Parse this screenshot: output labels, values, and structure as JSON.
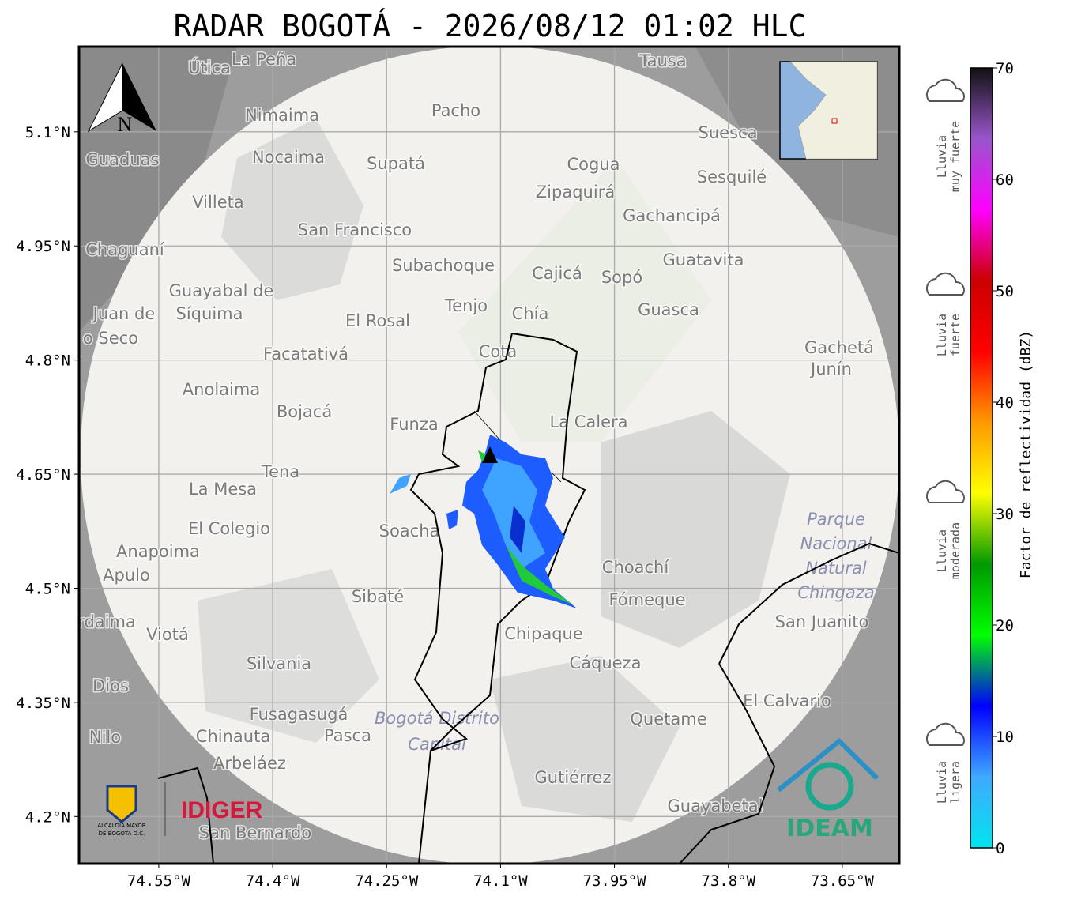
{
  "title": "RADAR BOGOTÁ - 2026/08/12 01:02 HLC",
  "map": {
    "lon_extent": [
      -74.655,
      -73.575
    ],
    "lat_extent": [
      4.138,
      5.212
    ],
    "lon_ticks": [
      {
        "value": -74.55,
        "label": "74.55°W"
      },
      {
        "value": -74.4,
        "label": "74.4°W"
      },
      {
        "value": -74.25,
        "label": "74.25°W"
      },
      {
        "value": -74.1,
        "label": "74.1°W"
      },
      {
        "value": -73.95,
        "label": "73.95°W"
      },
      {
        "value": -73.8,
        "label": "73.8°W"
      },
      {
        "value": -73.65,
        "label": "73.65°W"
      }
    ],
    "lat_ticks": [
      {
        "value": 5.1,
        "label": "5.1°N"
      },
      {
        "value": 4.95,
        "label": "4.95°N"
      },
      {
        "value": 4.8,
        "label": "4.8°N"
      },
      {
        "value": 4.65,
        "label": "4.65°N"
      },
      {
        "value": 4.5,
        "label": "4.5°N"
      },
      {
        "value": 4.35,
        "label": "4.35°N"
      },
      {
        "value": 4.2,
        "label": "4.2°N"
      }
    ],
    "places": [
      "La Peña",
      "Útica",
      "Tausa",
      "Pacho",
      "Nimaima",
      "Guaduas",
      "Nocaima",
      "Supatá",
      "Cogua",
      "Suesca",
      "Sesquilé",
      "Zipaquirá",
      "Villeta",
      "Gachancipá",
      "San Francisco",
      "Chaguaní",
      "Guatavita",
      "Subachoque",
      "Cajicá",
      "Sopó",
      "Guayabal de",
      "Síquima",
      "Juan de",
      "o Seco",
      "Tenjo",
      "El Rosal",
      "Chía",
      "Guasca",
      "Cota",
      "Gachetá",
      "Junín",
      "Facatativá",
      "Anolaima",
      "Bojacá",
      "Funza",
      "La Calera",
      "Tena",
      "La Mesa",
      "El Colegio",
      "Soacha",
      "Anapoima",
      "Apulo",
      "Choachí",
      "Sibaté",
      "Fómeque",
      "San Juanito",
      "rdaima",
      "Viotá",
      "Chipaque",
      "Silvania",
      "Cáqueza",
      "Dios",
      "El Calvario",
      "Fusagasugá",
      "Quetame",
      "Nilo",
      "Chinauta",
      "Pasca",
      "Arbeláez",
      "Gutiérrez",
      "Guayabetal",
      "San Bernardo"
    ],
    "protected_areas": [
      [
        "Parque",
        "Nacional",
        "Natural",
        "Chingaza"
      ],
      [
        "Bogotá Distrito",
        "Capital"
      ]
    ],
    "north": "N"
  },
  "colorbar": {
    "label": "Factor de reflectividad (dBZ)",
    "lim": [
      0,
      70
    ],
    "ticks": [
      0,
      10,
      20,
      30,
      40,
      50,
      60,
      70
    ],
    "colors": [
      "#00e5f0",
      "#3fa9ff",
      "#0000ff",
      "#00ff00",
      "#009900",
      "#ffff00",
      "#ff9900",
      "#ff0000",
      "#cc0000",
      "#ff00ff",
      "#9955cc",
      "#111111"
    ]
  },
  "rain_levels": [
    [
      "Lluvia",
      "muy fuerte"
    ],
    [
      "Lluvia",
      "fuerte"
    ],
    [
      "Lluvia",
      "moderada"
    ],
    [
      "Lluvia",
      "ligera"
    ]
  ],
  "logos": {
    "alcaldia": [
      "ALCALDÍA MAYOR",
      "DE BOGOTÁ D.C."
    ],
    "idiger": "IDIGER",
    "ideam": "IDEAM"
  }
}
